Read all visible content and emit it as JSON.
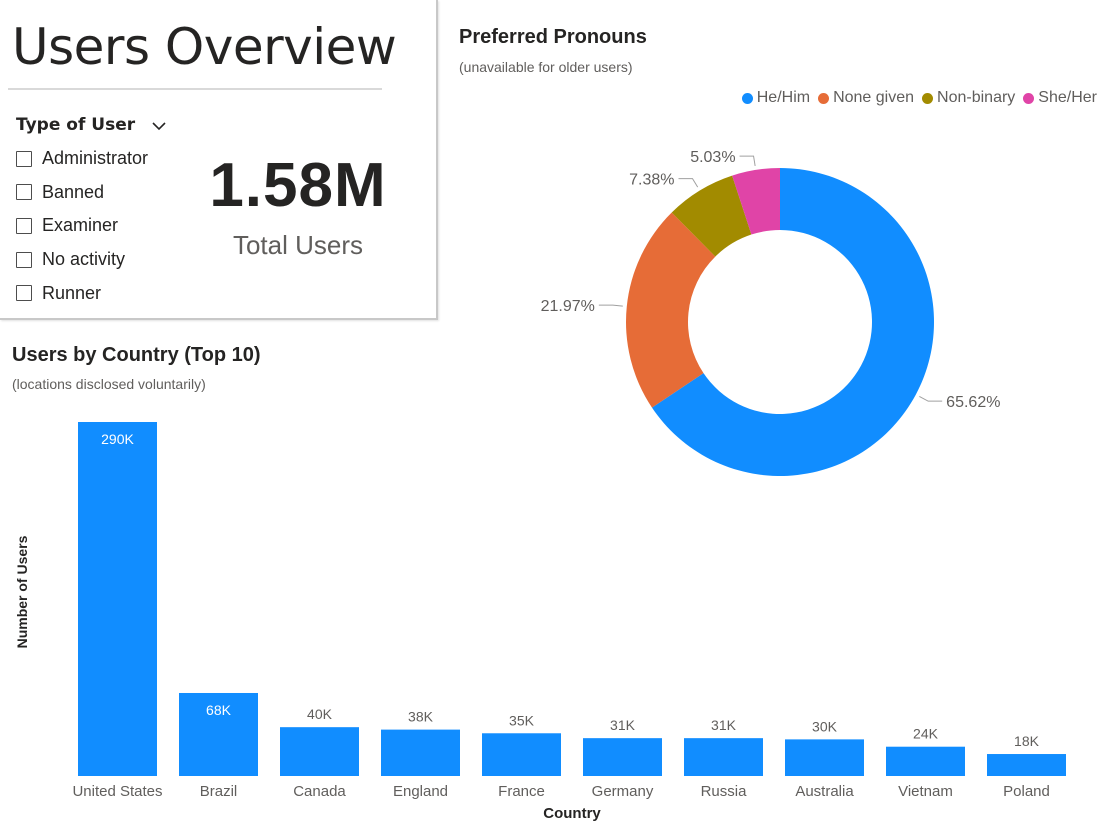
{
  "page": {
    "title": "Users Overview"
  },
  "slicer": {
    "header": "Type of User",
    "options": [
      "Administrator",
      "Banned",
      "Examiner",
      "No activity",
      "Runner"
    ]
  },
  "kpi": {
    "value": "1.58M",
    "label": "Total Users"
  },
  "icons": {
    "slicer_toggle": "chevron-down-icon"
  },
  "chart_data": [
    {
      "type": "pie",
      "variant": "donut",
      "title": "Preferred Pronouns",
      "subtitle": "(unavailable for older users)",
      "legend_position": "top-right",
      "categories": [
        "He/Him",
        "None given",
        "Non-binary",
        "She/Her"
      ],
      "values": [
        65.62,
        21.97,
        7.38,
        5.03
      ],
      "labels": [
        "65.62%",
        "21.97%",
        "7.38%",
        "5.03%"
      ],
      "colors": [
        "#118dff",
        "#e66c37",
        "#a28b00",
        "#e044a7"
      ]
    },
    {
      "type": "bar",
      "title": "Users by Country (Top 10)",
      "subtitle": "(locations disclosed voluntarily)",
      "xlabel": "Country",
      "ylabel": "Number of Users",
      "categories": [
        "United States",
        "Brazil",
        "Canada",
        "England",
        "France",
        "Germany",
        "Russia",
        "Australia",
        "Vietnam",
        "Poland"
      ],
      "values": [
        290000,
        68000,
        40000,
        38000,
        35000,
        31000,
        31000,
        30000,
        24000,
        18000
      ],
      "labels": [
        "290K",
        "68K",
        "40K",
        "38K",
        "35K",
        "31K",
        "31K",
        "30K",
        "24K",
        "18K"
      ],
      "ylim": [
        0,
        290000
      ],
      "grid": false,
      "color": "#118dff"
    }
  ]
}
